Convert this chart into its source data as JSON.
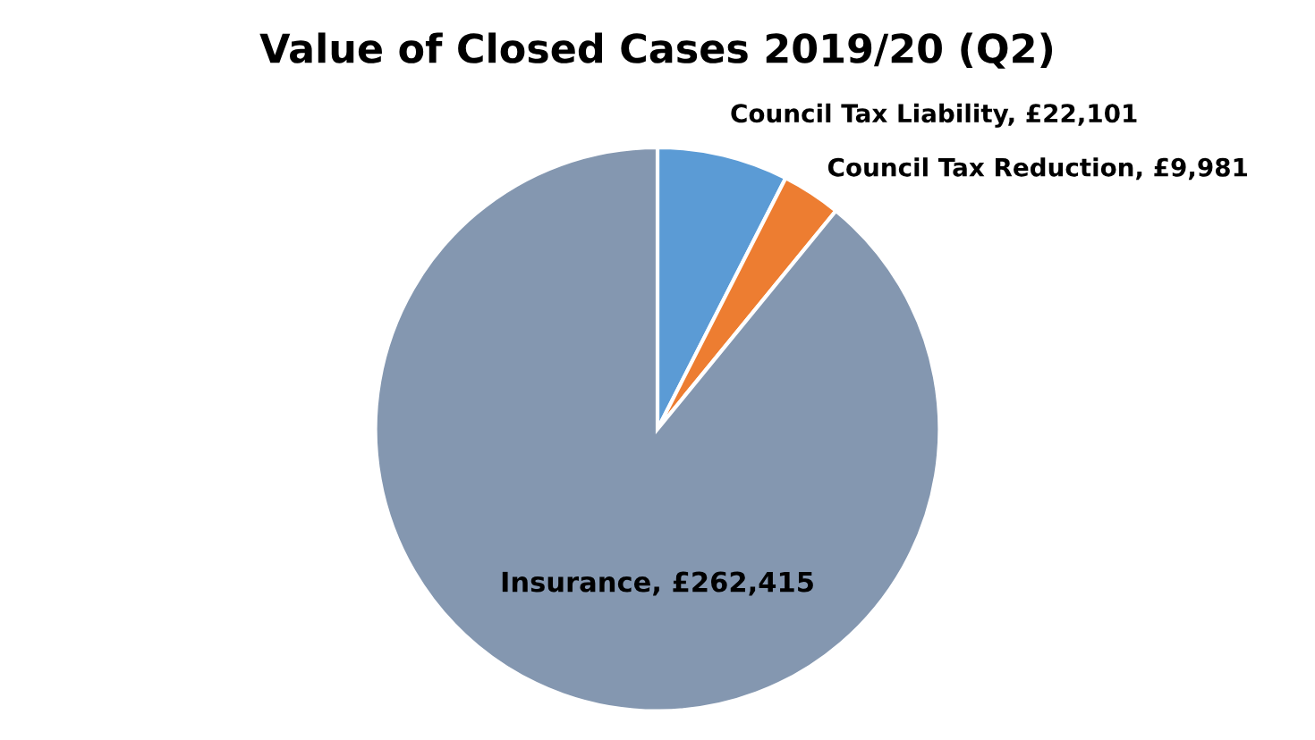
{
  "chart_data": {
    "type": "pie",
    "title": "Value of Closed Cases 2019/20 (Q2)",
    "categories": [
      "Council Tax Liability",
      "Council Tax Reduction",
      "Insurance"
    ],
    "values": [
      22101,
      9981,
      262415
    ],
    "value_labels": [
      "£22,101",
      "£9,981",
      "£262,415"
    ],
    "colors": [
      "#5b9bd5",
      "#ed7d31",
      "#8497b0"
    ]
  }
}
